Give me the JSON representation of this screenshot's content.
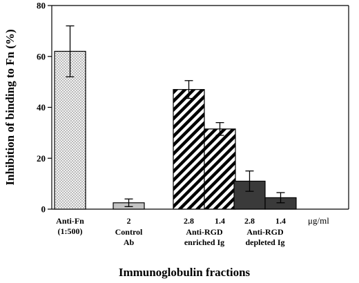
{
  "chart_data": {
    "type": "bar",
    "title": "",
    "ylabel": "Inhibition of binding to Fn (%)",
    "xlabel": "Immunoglobulin  fractions",
    "ylim": [
      0,
      80
    ],
    "yticks": [
      0,
      20,
      40,
      60,
      80
    ],
    "unit_label": "μg/ml",
    "groups": [
      {
        "label_lines": [
          "Anti-Fn",
          "(1:500)"
        ],
        "bars": [
          {
            "dose": "",
            "value": 62,
            "error": 10,
            "pattern": "dots"
          }
        ]
      },
      {
        "label_lines": [
          "Control",
          "Ab"
        ],
        "bars": [
          {
            "dose": "2",
            "value": 2.5,
            "error": 1.5,
            "pattern": "light-gray"
          }
        ]
      },
      {
        "label_lines": [
          "Anti-RGD",
          "enriched Ig"
        ],
        "bars": [
          {
            "dose": "2.8",
            "value": 47,
            "error": 3.5,
            "pattern": "diagonal-stripes"
          },
          {
            "dose": "1.4",
            "value": 31.5,
            "error": 2.5,
            "pattern": "diagonal-stripes"
          }
        ]
      },
      {
        "label_lines": [
          "Anti-RGD",
          "depleted Ig"
        ],
        "bars": [
          {
            "dose": "2.8",
            "value": 11,
            "error": 4,
            "pattern": "dark-gray"
          },
          {
            "dose": "1.4",
            "value": 4.5,
            "error": 2,
            "pattern": "dark-gray"
          }
        ]
      }
    ],
    "colors": {
      "light_gray": "#c4c4c4",
      "dark_gray": "#3a3a3a",
      "dot_fill": "#f2f2f2"
    }
  }
}
